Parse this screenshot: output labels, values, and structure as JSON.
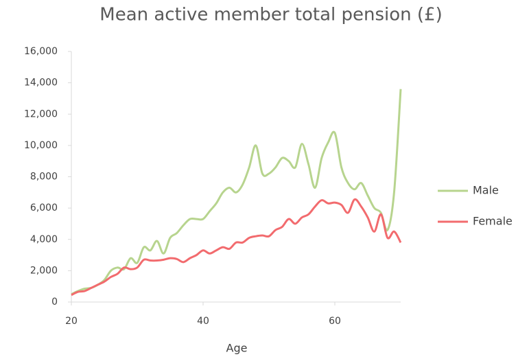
{
  "chart_data": {
    "type": "line",
    "title": "Mean active member total pension (£)",
    "x_label": "Age",
    "x": [
      20,
      21,
      22,
      23,
      24,
      25,
      26,
      27,
      28,
      29,
      30,
      31,
      32,
      33,
      34,
      35,
      36,
      37,
      38,
      39,
      40,
      41,
      42,
      43,
      44,
      45,
      46,
      47,
      48,
      49,
      50,
      51,
      52,
      53,
      54,
      55,
      56,
      57,
      58,
      59,
      60,
      61,
      62,
      63,
      64,
      65,
      66,
      67,
      68,
      69,
      70
    ],
    "series": [
      {
        "name": "Male",
        "color": "#b7d48e",
        "values": [
          500,
          700,
          850,
          900,
          1100,
          1400,
          2000,
          2200,
          2100,
          2800,
          2500,
          3500,
          3300,
          3900,
          3100,
          4100,
          4400,
          4900,
          5300,
          5300,
          5300,
          5800,
          6300,
          7000,
          7300,
          7000,
          7500,
          8600,
          10000,
          8200,
          8200,
          8600,
          9200,
          9000,
          8600,
          10100,
          8800,
          7300,
          9200,
          10200,
          10800,
          8600,
          7600,
          7200,
          7600,
          6800,
          6000,
          5700,
          4600,
          7000,
          13600
        ]
      },
      {
        "name": "Female",
        "color": "#f26b6e",
        "values": [
          450,
          650,
          700,
          900,
          1100,
          1300,
          1600,
          1800,
          2200,
          2100,
          2200,
          2700,
          2650,
          2650,
          2700,
          2800,
          2750,
          2550,
          2800,
          3000,
          3300,
          3100,
          3300,
          3500,
          3400,
          3800,
          3800,
          4100,
          4200,
          4250,
          4200,
          4600,
          4800,
          5300,
          5000,
          5400,
          5600,
          6100,
          6500,
          6300,
          6350,
          6200,
          5700,
          6550,
          6100,
          5400,
          4500,
          5600,
          4100,
          4500,
          3800
        ]
      }
    ],
    "xlim": [
      20,
      70
    ],
    "xticks": [
      20,
      40,
      60
    ],
    "ylim": [
      0,
      16000
    ],
    "yticks": [
      0,
      {
        "value": 2000,
        "label": "2,000"
      },
      {
        "value": 4000,
        "label": "4,000"
      },
      {
        "value": 6000,
        "label": "6,000"
      },
      {
        "value": 8000,
        "label": "8,000"
      },
      {
        "value": 10000,
        "label": "10,000"
      },
      {
        "value": 12000,
        "label": "12,000"
      },
      {
        "value": 14000,
        "label": "14,000"
      },
      {
        "value": 16000,
        "label": "16,000"
      }
    ],
    "legend": "right"
  }
}
